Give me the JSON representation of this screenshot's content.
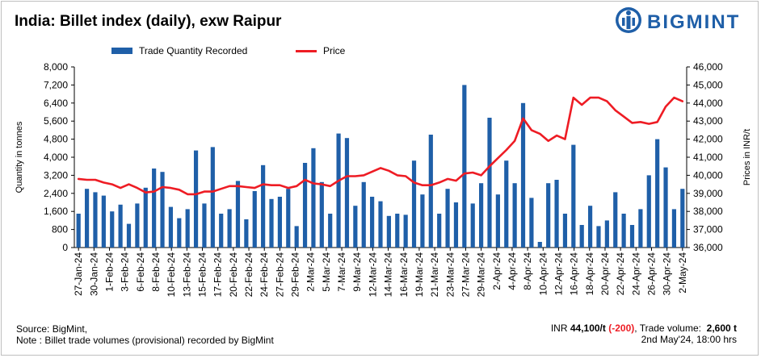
{
  "title": "India: Billet index (daily), exw Raipur",
  "brand": {
    "name": "BIGMINT",
    "color": "#1f5fa8"
  },
  "legend": {
    "bar_label": "Trade Quantity Recorded",
    "line_label": "Price"
  },
  "footer": {
    "source": "Source: BigMint,",
    "note": "Note : Billet trade volumes (provisional) recorded by BigMint",
    "price_prefix": "INR ",
    "price_value": "44,100/t",
    "price_change": "(-200)",
    "volume_label": ", Trade volume:",
    "volume_value": "2,600 t",
    "date": "2nd May'24, 18:00 hrs"
  },
  "chart_data": {
    "type": "bar+line",
    "ylabel_left": "Quantity in tonnes",
    "ylabel_right": "Prices in INR/t",
    "ylim_left": [
      0,
      8000
    ],
    "yticks_left": [
      "0",
      "800",
      "1,600",
      "2,400",
      "3,200",
      "4,000",
      "4,800",
      "5,600",
      "6,400",
      "7,200",
      "8,000"
    ],
    "ylim_right": [
      36000,
      46000
    ],
    "yticks_right": [
      "36,000",
      "37,000",
      "38,000",
      "39,000",
      "40,000",
      "41,000",
      "42,000",
      "43,000",
      "44,000",
      "45,000",
      "46,000"
    ],
    "xtick_labels": [
      "27-Jan-24",
      "30-Jan-24",
      "1-Feb-24",
      "3-Feb-24",
      "6-Feb-24",
      "8-Feb-24",
      "10-Feb-24",
      "13-Feb-24",
      "15-Feb-24",
      "17-Feb-24",
      "20-Feb-24",
      "22-Feb-24",
      "24-Feb-24",
      "27-Feb-24",
      "29-Feb-24",
      "2-Mar-24",
      "5-Mar-24",
      "7-Mar-24",
      "9-Mar-24",
      "12-Mar-24",
      "14-Mar-24",
      "16-Mar-24",
      "19-Mar-24",
      "21-Mar-24",
      "23-Mar-24",
      "27-Mar-24",
      "29-Mar-24",
      "2-Apr-24",
      "4-Apr-24",
      "8-Apr-24",
      "10-Apr-24",
      "12-Apr-24",
      "16-Apr-24",
      "18-Apr-24",
      "20-Apr-24",
      "22-Apr-24",
      "24-Apr-24",
      "26-Apr-24",
      "30-Apr-24",
      "2-May-24"
    ],
    "series": [
      {
        "name": "Trade Quantity Recorded",
        "type": "bar",
        "color": "#1f5fa8",
        "values": [
          1500,
          2600,
          2450,
          2300,
          1600,
          1900,
          1050,
          1950,
          2650,
          3500,
          3350,
          1800,
          1300,
          1700,
          4300,
          1950,
          4450,
          1500,
          1700,
          2950,
          1250,
          2500,
          3650,
          2150,
          2250,
          2600,
          950,
          3750,
          4400,
          2900,
          1500,
          5050,
          4850,
          1850,
          2900,
          2250,
          2050,
          1400,
          1500,
          1450,
          3850,
          2350,
          5000,
          1500,
          2600,
          2000,
          7200,
          1950,
          2850,
          5750,
          2350,
          3850,
          2850,
          6400,
          2200,
          250,
          2850,
          3000,
          1500,
          4550,
          1000,
          1850,
          950,
          1200,
          2450,
          1500,
          1000,
          1700,
          3200,
          4800,
          3550,
          1700,
          2600
        ]
      },
      {
        "name": "Price",
        "type": "line",
        "color": "#ee1c24",
        "values": [
          39800,
          39750,
          39750,
          39600,
          39500,
          39300,
          39500,
          39300,
          39050,
          39100,
          39350,
          39300,
          39200,
          38950,
          38950,
          39100,
          39100,
          39250,
          39400,
          39400,
          39350,
          39300,
          39500,
          39450,
          39450,
          39300,
          39400,
          39750,
          39550,
          39500,
          39400,
          39700,
          39950,
          39950,
          40000,
          40200,
          40400,
          40250,
          40000,
          39950,
          39600,
          39450,
          39450,
          39600,
          39800,
          39700,
          40100,
          40150,
          40000,
          40500,
          40950,
          41400,
          41900,
          43150,
          42500,
          42300,
          41900,
          42200,
          42000,
          44300,
          43900,
          44300,
          44300,
          44100,
          43600,
          43250,
          42900,
          42950,
          42850,
          42950,
          43800,
          44300,
          44100
        ]
      }
    ],
    "grid": false
  }
}
